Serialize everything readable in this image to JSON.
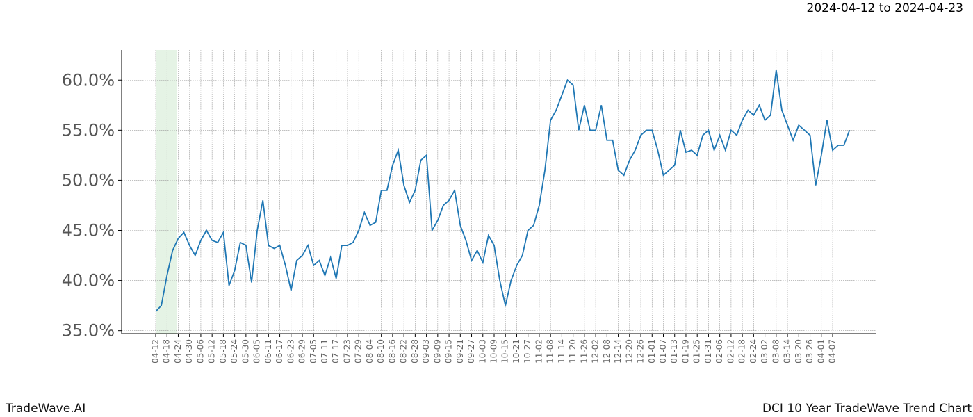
{
  "chart_data": {
    "type": "line",
    "title": "2024-04-12 to 2024-04-23",
    "footer_left": "TradeWave.AI",
    "footer_right": "DCI 10 Year TradeWave Trend Chart",
    "categories": [
      "04-12",
      null,
      "04-18",
      null,
      "04-24",
      null,
      "04-30",
      null,
      "05-06",
      null,
      "05-12",
      null,
      "05-18",
      null,
      "05-24",
      null,
      "05-30",
      null,
      "06-05",
      null,
      "06-11",
      null,
      "06-17",
      null,
      "06-23",
      null,
      "06-29",
      null,
      "07-05",
      null,
      "07-11",
      null,
      "07-17",
      null,
      "07-23",
      null,
      "07-29",
      null,
      "08-04",
      null,
      "08-10",
      null,
      "08-16",
      null,
      "08-22",
      null,
      "08-28",
      null,
      "09-03",
      null,
      "09-09",
      null,
      "09-15",
      null,
      "09-21",
      null,
      "09-27",
      null,
      "10-03",
      null,
      "10-09",
      null,
      "10-15",
      null,
      "10-21",
      null,
      "10-27",
      null,
      "11-02",
      null,
      "11-08",
      null,
      "11-14",
      null,
      "11-20",
      null,
      "11-26",
      null,
      "12-02",
      null,
      "12-08",
      null,
      "12-14",
      null,
      "12-20",
      null,
      "12-26",
      null,
      "01-01",
      null,
      "01-07",
      null,
      "01-13",
      null,
      "01-19",
      null,
      "01-25",
      null,
      "01-31",
      null,
      "02-06",
      null,
      "02-12",
      null,
      "02-18",
      null,
      "02-24",
      null,
      "03-02",
      null,
      "03-08",
      null,
      "03-14",
      null,
      "03-20",
      null,
      "03-26",
      null,
      "04-01",
      null,
      "04-07",
      null,
      null,
      null
    ],
    "values": [
      36.9,
      37.5,
      40.5,
      43.0,
      44.2,
      44.8,
      43.5,
      42.5,
      44.0,
      45.0,
      44.0,
      43.8,
      44.8,
      39.5,
      41.0,
      43.8,
      43.5,
      39.8,
      45.0,
      48.0,
      43.5,
      43.2,
      43.5,
      41.5,
      39.0,
      42.0,
      42.5,
      43.5,
      41.5,
      42.0,
      40.5,
      42.3,
      40.2,
      43.5,
      43.5,
      43.8,
      45.0,
      46.8,
      45.5,
      45.8,
      49.0,
      49.0,
      51.5,
      53.0,
      49.5,
      47.8,
      49.0,
      52.0,
      52.5,
      45.0,
      46.0,
      47.5,
      48.0,
      49.0,
      45.5,
      44.0,
      42.0,
      43.0,
      41.8,
      44.5,
      43.5,
      40.0,
      37.5,
      40.0,
      41.5,
      42.5,
      45.0,
      45.5,
      47.5,
      51.0,
      56.0,
      57.0,
      58.5,
      60.0,
      59.5,
      55.0,
      57.5,
      55.0,
      55.0,
      57.5,
      54.0,
      54.0,
      51.0,
      50.5,
      52.0,
      53.0,
      54.5,
      55.0,
      55.0,
      53.0,
      50.5,
      51.0,
      51.5,
      55.0,
      52.8,
      53.0,
      52.5,
      54.5,
      55.0,
      53.0,
      54.5,
      53.0,
      55.0,
      54.5,
      56.0,
      57.0,
      56.5,
      57.5,
      56.0,
      56.5,
      61.0,
      57.0,
      55.5,
      54.0,
      55.5,
      55.0,
      54.5,
      49.5,
      52.5,
      56.0,
      53.0,
      53.5,
      53.5,
      55.0
    ],
    "color": "#1f77b4",
    "ylim": [
      34.7,
      63
    ],
    "yticks": [
      {
        "value": 35,
        "label": "35.0%"
      },
      {
        "value": 40,
        "label": "40.0%"
      },
      {
        "value": 45,
        "label": "45.0%"
      },
      {
        "value": 50,
        "label": "50.0%"
      },
      {
        "value": 55,
        "label": "55.0%"
      },
      {
        "value": 60,
        "label": "60.0%"
      }
    ],
    "grid": true
  }
}
